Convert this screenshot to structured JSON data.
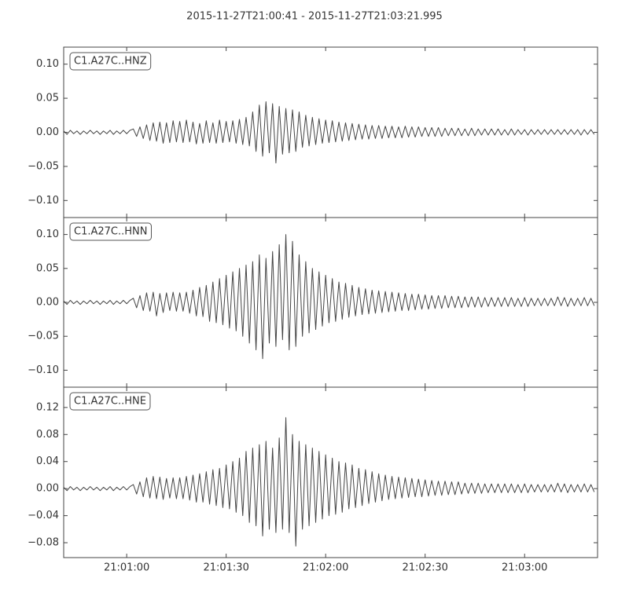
{
  "title": "2015-11-27T21:00:41  -  2015-11-27T21:03:21.995",
  "chart_data": [
    {
      "type": "line",
      "x": [
        41,
        42,
        43,
        44,
        45,
        46,
        47,
        48,
        49,
        50,
        51,
        52,
        53,
        54,
        55,
        56,
        57,
        58,
        59,
        60,
        61,
        62,
        63,
        64,
        65,
        66,
        67,
        68,
        69,
        70,
        71,
        72,
        73,
        74,
        75,
        76,
        77,
        78,
        79,
        80,
        81,
        82,
        83,
        84,
        85,
        86,
        87,
        88,
        89,
        90,
        91,
        92,
        93,
        94,
        95,
        96,
        97,
        98,
        99,
        100,
        101,
        102,
        103,
        104,
        105,
        106,
        107,
        108,
        109,
        110,
        111,
        112,
        113,
        114,
        115,
        116,
        117,
        118,
        119,
        120,
        121,
        122,
        123,
        124,
        125,
        126,
        127,
        128,
        129,
        130,
        131,
        132,
        133,
        134,
        135,
        136,
        137,
        138,
        139,
        140,
        141,
        142,
        143,
        144,
        145,
        146,
        147,
        148,
        149,
        150,
        151,
        152,
        153,
        154,
        155,
        156,
        157,
        158,
        159,
        160,
        161,
        162,
        163,
        164,
        165,
        166,
        167,
        168,
        169,
        170,
        171,
        172,
        173,
        174,
        175,
        176,
        177,
        178,
        179,
        180,
        181,
        182,
        183,
        184,
        185,
        186,
        187,
        188,
        189,
        190,
        191,
        192,
        193,
        194,
        195,
        196,
        197,
        198,
        199,
        200,
        201
      ],
      "series": [
        {
          "name": "C1.A27C..HNZ",
          "color": "#444444",
          "values": [
            0.002,
            -0.003,
            0.003,
            -0.002,
            0.002,
            -0.003,
            0.002,
            -0.002,
            0.003,
            -0.002,
            0.002,
            -0.003,
            0.002,
            -0.002,
            0.003,
            -0.003,
            0.002,
            -0.002,
            0.003,
            -0.002,
            0.003,
            0.005,
            -0.006,
            0.008,
            -0.009,
            0.011,
            -0.012,
            0.014,
            -0.013,
            0.015,
            -0.016,
            0.014,
            -0.015,
            0.017,
            -0.014,
            0.016,
            -0.015,
            0.018,
            -0.014,
            0.015,
            -0.017,
            0.013,
            -0.016,
            0.017,
            -0.015,
            0.014,
            -0.016,
            0.018,
            -0.015,
            0.016,
            -0.014,
            0.017,
            -0.016,
            0.019,
            -0.018,
            0.022,
            -0.02,
            0.03,
            -0.028,
            0.04,
            -0.035,
            0.045,
            -0.03,
            0.042,
            -0.045,
            0.038,
            -0.032,
            0.035,
            -0.03,
            0.033,
            -0.028,
            0.03,
            -0.022,
            0.025,
            -0.02,
            0.022,
            -0.018,
            0.02,
            -0.016,
            0.018,
            -0.015,
            0.017,
            -0.014,
            0.015,
            -0.013,
            0.014,
            -0.012,
            0.013,
            -0.011,
            0.012,
            -0.01,
            0.011,
            -0.01,
            0.01,
            -0.009,
            0.01,
            -0.009,
            0.009,
            -0.008,
            0.009,
            -0.008,
            0.008,
            -0.008,
            0.009,
            -0.007,
            0.008,
            -0.007,
            0.008,
            -0.006,
            0.007,
            -0.006,
            0.007,
            -0.006,
            0.007,
            -0.006,
            0.006,
            -0.005,
            0.006,
            -0.005,
            0.006,
            -0.005,
            0.005,
            -0.005,
            0.006,
            -0.005,
            0.005,
            -0.004,
            0.005,
            -0.004,
            0.005,
            -0.004,
            0.005,
            -0.004,
            0.004,
            -0.004,
            0.005,
            -0.004,
            0.004,
            -0.003,
            0.004,
            -0.004,
            0.004,
            -0.003,
            0.004,
            -0.003,
            0.004,
            -0.003,
            0.004,
            -0.003,
            0.004,
            -0.003,
            0.004,
            -0.003,
            0.004,
            -0.003,
            0.004,
            -0.004,
            0.004,
            -0.003,
            0.004,
            -0.003
          ]
        }
      ],
      "xlim": [
        41,
        201.995
      ],
      "xticks": [
        60,
        90,
        120,
        150,
        180
      ],
      "ylim": [
        -0.125,
        0.125
      ],
      "yticks": [
        {
          "value": -0.1,
          "label": "−0.10"
        },
        {
          "value": -0.05,
          "label": "−0.05"
        },
        {
          "value": 0,
          "label": "0.00"
        },
        0.05,
        {
          "value": 0.1,
          "label": "0.10"
        }
      ]
    },
    {
      "type": "line",
      "x": [
        41,
        42,
        43,
        44,
        45,
        46,
        47,
        48,
        49,
        50,
        51,
        52,
        53,
        54,
        55,
        56,
        57,
        58,
        59,
        60,
        61,
        62,
        63,
        64,
        65,
        66,
        67,
        68,
        69,
        70,
        71,
        72,
        73,
        74,
        75,
        76,
        77,
        78,
        79,
        80,
        81,
        82,
        83,
        84,
        85,
        86,
        87,
        88,
        89,
        90,
        91,
        92,
        93,
        94,
        95,
        96,
        97,
        98,
        99,
        100,
        101,
        102,
        103,
        104,
        105,
        106,
        107,
        108,
        109,
        110,
        111,
        112,
        113,
        114,
        115,
        116,
        117,
        118,
        119,
        120,
        121,
        122,
        123,
        124,
        125,
        126,
        127,
        128,
        129,
        130,
        131,
        132,
        133,
        134,
        135,
        136,
        137,
        138,
        139,
        140,
        141,
        142,
        143,
        144,
        145,
        146,
        147,
        148,
        149,
        150,
        151,
        152,
        153,
        154,
        155,
        156,
        157,
        158,
        159,
        160,
        161,
        162,
        163,
        164,
        165,
        166,
        167,
        168,
        169,
        170,
        171,
        172,
        173,
        174,
        175,
        176,
        177,
        178,
        179,
        180,
        181,
        182,
        183,
        184,
        185,
        186,
        187,
        188,
        189,
        190,
        191,
        192,
        193,
        194,
        195,
        196,
        197,
        198,
        199,
        200,
        201
      ],
      "series": [
        {
          "name": "C1.A27C..HNN",
          "color": "#444444",
          "values": [
            0.002,
            -0.003,
            0.003,
            -0.002,
            0.002,
            -0.003,
            0.002,
            -0.002,
            0.003,
            -0.002,
            0.002,
            -0.003,
            0.002,
            -0.002,
            0.003,
            -0.003,
            0.002,
            -0.002,
            0.003,
            -0.002,
            0.003,
            0.006,
            -0.008,
            0.01,
            -0.012,
            0.014,
            -0.013,
            0.015,
            -0.02,
            0.013,
            -0.015,
            0.014,
            -0.012,
            0.015,
            -0.013,
            0.014,
            -0.013,
            0.015,
            -0.016,
            0.018,
            -0.02,
            0.022,
            -0.021,
            0.025,
            -0.028,
            0.03,
            -0.03,
            0.035,
            -0.033,
            0.04,
            -0.038,
            0.045,
            -0.042,
            0.05,
            -0.05,
            0.055,
            -0.06,
            0.06,
            -0.07,
            0.07,
            -0.083,
            0.065,
            -0.06,
            0.075,
            -0.065,
            0.085,
            -0.055,
            0.1,
            -0.07,
            0.09,
            -0.065,
            0.07,
            -0.05,
            0.06,
            -0.045,
            0.05,
            -0.04,
            0.045,
            -0.035,
            0.04,
            -0.03,
            0.035,
            -0.028,
            0.03,
            -0.025,
            0.028,
            -0.022,
            0.025,
            -0.02,
            0.022,
            -0.018,
            0.02,
            -0.017,
            0.018,
            -0.016,
            0.017,
            -0.015,
            0.016,
            -0.014,
            0.015,
            -0.013,
            0.014,
            -0.012,
            0.013,
            -0.012,
            0.012,
            -0.011,
            0.012,
            -0.01,
            0.011,
            -0.01,
            0.01,
            -0.009,
            0.01,
            -0.009,
            0.01,
            -0.008,
            0.009,
            -0.008,
            0.009,
            -0.008,
            0.008,
            -0.007,
            0.008,
            -0.007,
            0.008,
            -0.007,
            0.007,
            -0.006,
            0.007,
            -0.006,
            0.007,
            -0.006,
            0.007,
            -0.006,
            0.007,
            -0.006,
            0.006,
            -0.006,
            0.007,
            -0.006,
            0.006,
            -0.005,
            0.006,
            -0.005,
            0.006,
            -0.005,
            0.006,
            -0.005,
            0.008,
            -0.005,
            0.007,
            -0.006,
            0.006,
            -0.005,
            0.006,
            -0.005,
            0.007,
            -0.005,
            0.006,
            -0.005
          ]
        }
      ],
      "xlim": [
        41,
        201.995
      ],
      "xticks": [
        60,
        90,
        120,
        150,
        180
      ],
      "ylim": [
        -0.125,
        0.125
      ],
      "yticks": [
        {
          "value": -0.1,
          "label": "−0.10"
        },
        {
          "value": -0.05,
          "label": "−0.05"
        },
        {
          "value": 0,
          "label": "0.00"
        },
        0.05,
        {
          "value": 0.1,
          "label": "0.10"
        }
      ]
    },
    {
      "type": "line",
      "x": [
        41,
        42,
        43,
        44,
        45,
        46,
        47,
        48,
        49,
        50,
        51,
        52,
        53,
        54,
        55,
        56,
        57,
        58,
        59,
        60,
        61,
        62,
        63,
        64,
        65,
        66,
        67,
        68,
        69,
        70,
        71,
        72,
        73,
        74,
        75,
        76,
        77,
        78,
        79,
        80,
        81,
        82,
        83,
        84,
        85,
        86,
        87,
        88,
        89,
        90,
        91,
        92,
        93,
        94,
        95,
        96,
        97,
        98,
        99,
        100,
        101,
        102,
        103,
        104,
        105,
        106,
        107,
        108,
        109,
        110,
        111,
        112,
        113,
        114,
        115,
        116,
        117,
        118,
        119,
        120,
        121,
        122,
        123,
        124,
        125,
        126,
        127,
        128,
        129,
        130,
        131,
        132,
        133,
        134,
        135,
        136,
        137,
        138,
        139,
        140,
        141,
        142,
        143,
        144,
        145,
        146,
        147,
        148,
        149,
        150,
        151,
        152,
        153,
        154,
        155,
        156,
        157,
        158,
        159,
        160,
        161,
        162,
        163,
        164,
        165,
        166,
        167,
        168,
        169,
        170,
        171,
        172,
        173,
        174,
        175,
        176,
        177,
        178,
        179,
        180,
        181,
        182,
        183,
        184,
        185,
        186,
        187,
        188,
        189,
        190,
        191,
        192,
        193,
        194,
        195,
        196,
        197,
        198,
        199,
        200,
        201
      ],
      "series": [
        {
          "name": "C1.A27C..HNE",
          "color": "#444444",
          "values": [
            0.002,
            -0.003,
            0.003,
            -0.002,
            0.002,
            -0.003,
            0.002,
            -0.002,
            0.003,
            -0.002,
            0.002,
            -0.003,
            0.002,
            -0.002,
            0.003,
            -0.003,
            0.002,
            -0.002,
            0.003,
            -0.002,
            0.003,
            0.006,
            -0.008,
            0.01,
            -0.012,
            0.016,
            -0.014,
            0.018,
            -0.015,
            0.017,
            -0.016,
            0.015,
            -0.014,
            0.016,
            -0.015,
            0.016,
            -0.015,
            0.018,
            -0.017,
            0.02,
            -0.02,
            0.022,
            -0.02,
            0.025,
            -0.023,
            0.028,
            -0.025,
            0.03,
            -0.028,
            0.035,
            -0.03,
            0.04,
            -0.035,
            0.045,
            -0.04,
            0.055,
            -0.05,
            0.06,
            -0.055,
            0.065,
            -0.07,
            0.07,
            -0.06,
            0.06,
            -0.065,
            0.075,
            -0.06,
            0.105,
            -0.065,
            0.08,
            -0.085,
            0.07,
            -0.06,
            0.065,
            -0.055,
            0.06,
            -0.05,
            0.055,
            -0.045,
            0.05,
            -0.04,
            0.045,
            -0.038,
            0.04,
            -0.035,
            0.038,
            -0.03,
            0.035,
            -0.028,
            0.03,
            -0.025,
            0.028,
            -0.022,
            0.025,
            -0.02,
            0.022,
            -0.018,
            0.02,
            -0.016,
            0.018,
            -0.015,
            0.017,
            -0.014,
            0.016,
            -0.013,
            0.015,
            -0.012,
            0.014,
            -0.012,
            0.013,
            -0.011,
            0.012,
            -0.01,
            0.011,
            -0.01,
            0.011,
            -0.009,
            0.01,
            -0.009,
            0.01,
            -0.008,
            0.008,
            -0.007,
            0.008,
            -0.007,
            0.008,
            -0.007,
            0.007,
            -0.006,
            0.007,
            -0.006,
            0.007,
            -0.006,
            0.007,
            -0.006,
            0.007,
            -0.006,
            0.006,
            -0.006,
            0.007,
            -0.006,
            0.006,
            -0.005,
            0.006,
            -0.005,
            0.006,
            -0.005,
            0.006,
            -0.005,
            0.008,
            -0.005,
            0.007,
            -0.006,
            0.006,
            -0.005,
            0.006,
            -0.005,
            0.007,
            -0.005,
            0.006,
            -0.005
          ]
        }
      ],
      "xlim": [
        41,
        201.995
      ],
      "xticks": [
        {
          "value": 60,
          "label": "21:01:00"
        },
        {
          "value": 90,
          "label": "21:01:30"
        },
        {
          "value": 120,
          "label": "21:02:00"
        },
        {
          "value": 150,
          "label": "21:02:30"
        },
        {
          "value": 180,
          "label": "21:03:00"
        }
      ],
      "ylim": [
        -0.102,
        0.15
      ],
      "yticks": [
        {
          "value": -0.08,
          "label": "−0.08"
        },
        {
          "value": -0.04,
          "label": "−0.04"
        },
        {
          "value": 0,
          "label": "0.00"
        },
        0.04,
        0.08,
        0.12
      ]
    }
  ]
}
